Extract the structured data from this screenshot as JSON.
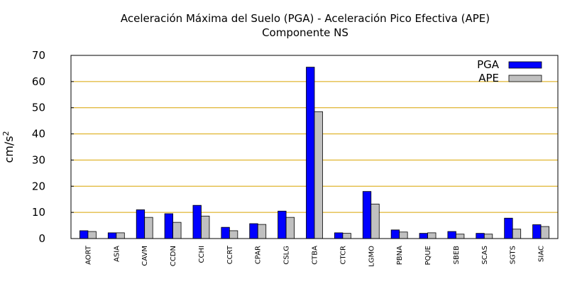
{
  "chart_data": {
    "type": "bar",
    "title": "Aceleración Máxima del Suelo (PGA) -  Aceleración Pico Efectiva (APE)",
    "subtitle": "Componente NS",
    "xlabel": "",
    "ylabel": "cm/s",
    "ylabel_superscript": "2",
    "ylim": [
      0,
      70
    ],
    "yticks": [
      0,
      10,
      20,
      30,
      40,
      50,
      60,
      70
    ],
    "grid": true,
    "legend_position": "top-right",
    "categories": [
      "AORT",
      "ASIA",
      "CAVM",
      "CCDN",
      "CCHI",
      "CCRT",
      "CPAR",
      "CSLG",
      "CTBA",
      "CTCR",
      "LGMO",
      "PBNA",
      "PQUE",
      "SBEB",
      "SCAS",
      "SGTS",
      "SIAC"
    ],
    "series": [
      {
        "name": "PGA",
        "color": "#0000ff",
        "values": [
          3.0,
          2.2,
          11.0,
          9.5,
          12.7,
          4.3,
          5.7,
          10.5,
          65.5,
          2.2,
          18.0,
          3.3,
          2.0,
          2.7,
          2.0,
          7.8,
          5.3
        ]
      },
      {
        "name": "APE",
        "color": "#c0c0c0",
        "values": [
          2.7,
          2.2,
          8.1,
          6.2,
          8.6,
          3.0,
          5.4,
          8.1,
          48.5,
          2.0,
          13.2,
          2.5,
          2.2,
          1.7,
          1.7,
          3.6,
          4.6
        ]
      }
    ],
    "colors": {
      "grid": "#d9a400",
      "axis": "#000000"
    }
  }
}
